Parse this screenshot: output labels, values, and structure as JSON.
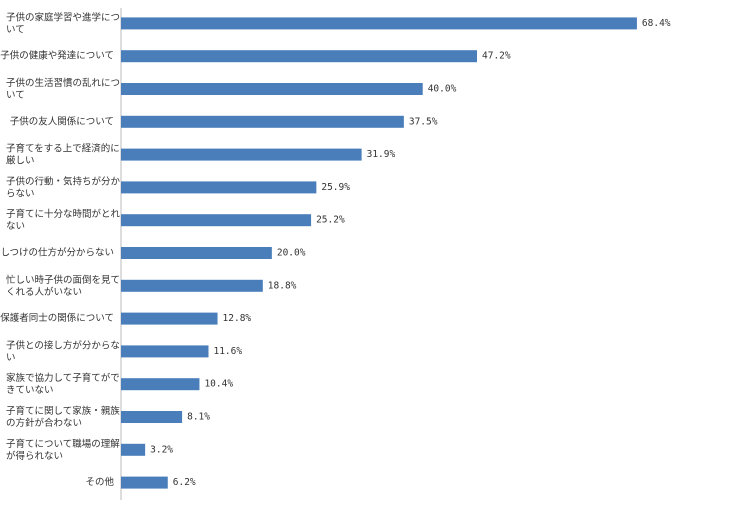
{
  "chart_data": {
    "type": "bar",
    "orientation": "horizontal",
    "categories": [
      "子供の家庭学習や進学について",
      "子供の健康や発達について",
      "子供の生活習慣の乱れについて",
      "子供の友人関係について",
      "子育てをする上で経済的に厳しい",
      "子供の行動・気持ちが分からない",
      "子育てに十分な時間がとれない",
      "しつけの仕方が分からない",
      "忙しい時子供の面倒を見てくれる人がいない",
      "保護者同士の関係について",
      "子供との接し方が分からない",
      "家族で協力して子育てができていない",
      "子育てに関して家族・親族の方針が合わない",
      "子育てについて職場の理解が得られない",
      "その他"
    ],
    "values": [
      68.4,
      47.2,
      40.0,
      37.5,
      31.9,
      25.9,
      25.2,
      20.0,
      18.8,
      12.8,
      11.6,
      10.4,
      8.1,
      3.2,
      6.2
    ],
    "value_labels": [
      "68.4%",
      "47.2%",
      "40.0%",
      "37.5%",
      "31.9%",
      "25.9%",
      "25.2%",
      "20.0%",
      "18.8%",
      "12.8%",
      "11.6%",
      "10.4%",
      "8.1%",
      "3.2%",
      "6.2%"
    ],
    "color": "#4a7ebb",
    "xlim": [
      0,
      70
    ]
  }
}
